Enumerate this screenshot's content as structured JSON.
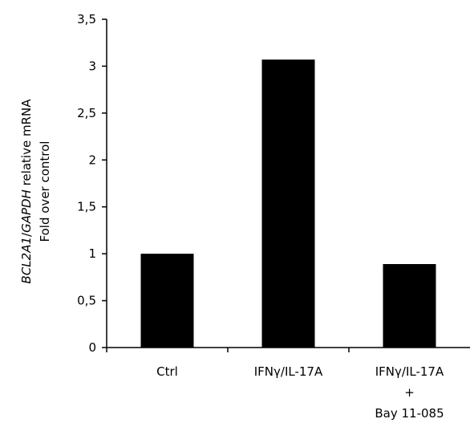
{
  "chart_data": {
    "type": "bar",
    "categories": [
      [
        "Ctrl"
      ],
      [
        "IFNγ/IL-17A"
      ],
      [
        "IFNγ/IL-17A",
        "+",
        "Bay 11-085"
      ]
    ],
    "values": [
      1.0,
      3.07,
      0.89
    ],
    "ylabel": {
      "line1_italic_a": "BCL2A1",
      "line1_sep": "/",
      "line1_italic_b": "GAPDH",
      "line1_rest": " relative mRNA",
      "line2": "Fold over control"
    },
    "ylim": [
      0,
      3.5
    ],
    "yticks": [
      0,
      0.5,
      1,
      1.5,
      2,
      2.5,
      3,
      3.5
    ],
    "ytick_labels": [
      "0",
      "0,5",
      "1",
      "1,5",
      "2",
      "2,5",
      "3",
      "3,5"
    ],
    "grid": false,
    "bar_color": "#000000"
  }
}
